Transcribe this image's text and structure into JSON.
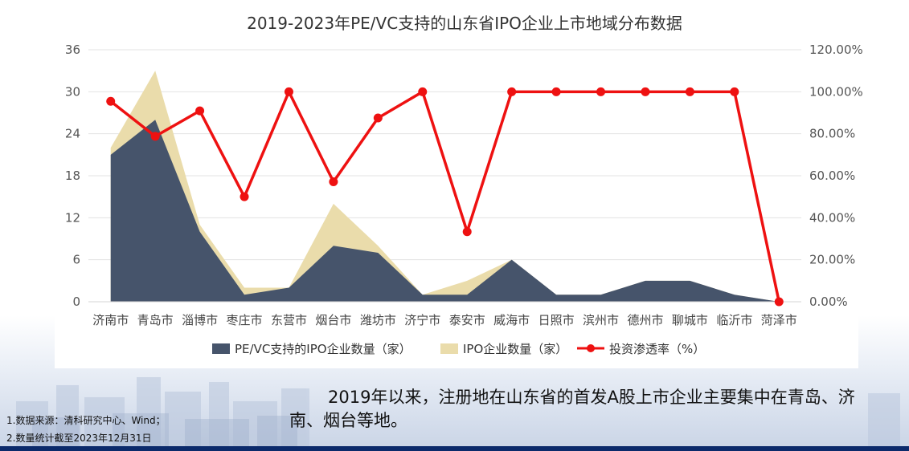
{
  "chart_data": {
    "type": "area+line",
    "title": "2019-2023年PE/VC支持的山东省IPO企业上市地域分布数据",
    "categories": [
      "济南市",
      "青岛市",
      "淄博市",
      "枣庄市",
      "东营市",
      "烟台市",
      "潍坊市",
      "济宁市",
      "泰安市",
      "威海市",
      "日照市",
      "滨州市",
      "德州市",
      "聊城市",
      "临沂市",
      "菏泽市"
    ],
    "y_left": {
      "ticks": [
        "0",
        "6",
        "12",
        "18",
        "24",
        "30",
        "36"
      ],
      "ylim": [
        0,
        36
      ]
    },
    "y_right": {
      "ticks": [
        "0.00%",
        "20.00%",
        "40.00%",
        "60.00%",
        "80.00%",
        "100.00%",
        "120.00%"
      ],
      "ylim": [
        0,
        120
      ]
    },
    "series": [
      {
        "name": "IPO企业数量（家）",
        "type": "area",
        "axis": "left",
        "color": "#eadcab",
        "values": [
          22,
          33,
          11,
          2,
          2,
          14,
          8,
          1,
          3,
          6,
          1,
          1,
          3,
          3,
          1,
          0
        ]
      },
      {
        "name": "PE/VC支持的IPO企业数量（家）",
        "type": "area",
        "axis": "left",
        "color": "#46546b",
        "values": [
          21,
          26,
          10,
          1,
          2,
          8,
          7,
          1,
          1,
          6,
          1,
          1,
          3,
          3,
          1,
          0
        ]
      },
      {
        "name": "投资渗透率（%）",
        "type": "line",
        "axis": "right",
        "color": "#ee1111",
        "values": [
          95.45,
          78.79,
          90.91,
          50.0,
          100.0,
          57.14,
          87.5,
          100.0,
          33.33,
          100.0,
          100.0,
          100.0,
          100.0,
          100.0,
          100.0,
          0.0
        ]
      }
    ],
    "legend_order": [
      "PE/VC支持的IPO企业数量（家）",
      "IPO企业数量（家）",
      "投资渗透率（%）"
    ],
    "legend_position": "bottom",
    "grid": true
  },
  "summary": "2019年以来，注册地在山东省的首发A股上市企业主要集中在青岛、济南、烟台等地。",
  "notes": [
    "1.数据来源：清科研究中心、Wind；",
    "2.数量统计截至2023年12月31日"
  ]
}
